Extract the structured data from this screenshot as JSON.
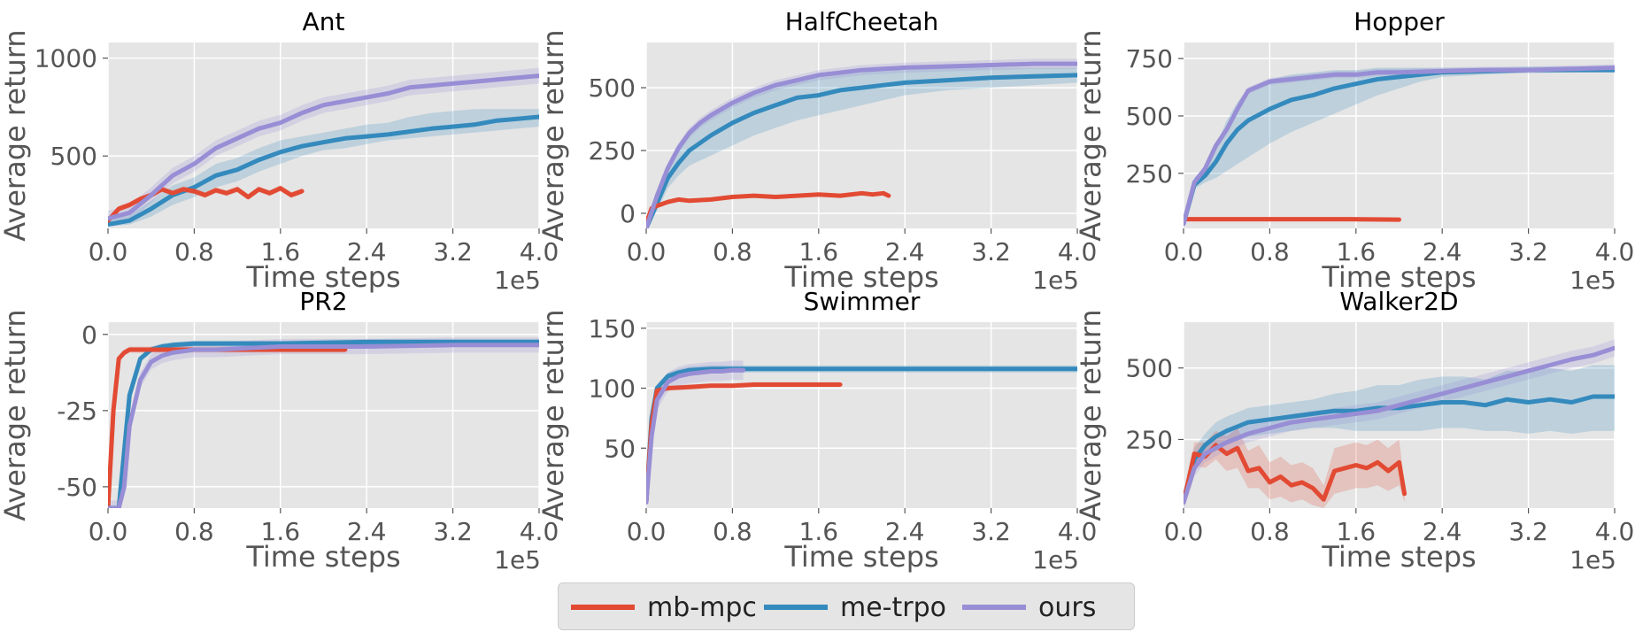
{
  "colors": {
    "mb-mpc": "#E24A33",
    "me-trpo": "#348ABD",
    "ours": "#988ED5",
    "panel_bg": "#E5E5E5",
    "grid": "#FFFFFF"
  },
  "legend": {
    "placement": "bottom-center",
    "items": [
      "mb-mpc",
      "me-trpo",
      "ours"
    ]
  },
  "chart_data": [
    {
      "type": "line",
      "title": "Ant",
      "xlabel": "Time steps",
      "ylabel": "Average return",
      "x_scale_label": "1e5",
      "xlim": [
        0,
        4.0
      ],
      "ylim": [
        130,
        1080
      ],
      "xticks": [
        "0.0",
        "0.8",
        "1.6",
        "2.4",
        "3.2",
        "4.0"
      ],
      "yticks": [
        500,
        1000
      ],
      "grid": true,
      "series": [
        {
          "name": "mb-mpc",
          "x": [
            0.0,
            0.1,
            0.2,
            0.3,
            0.4,
            0.5,
            0.6,
            0.7,
            0.8,
            0.9,
            1.0,
            1.1,
            1.2,
            1.3,
            1.4,
            1.5,
            1.6,
            1.7,
            1.8
          ],
          "y": [
            170,
            230,
            250,
            280,
            300,
            330,
            310,
            330,
            320,
            300,
            325,
            310,
            330,
            290,
            330,
            310,
            335,
            300,
            320
          ],
          "band": 15
        },
        {
          "name": "me-trpo",
          "x": [
            0.0,
            0.2,
            0.4,
            0.6,
            0.8,
            1.0,
            1.2,
            1.4,
            1.6,
            1.8,
            2.0,
            2.2,
            2.4,
            2.6,
            2.8,
            3.0,
            3.2,
            3.4,
            3.6,
            3.8,
            4.0
          ],
          "y": [
            150,
            170,
            230,
            300,
            340,
            400,
            430,
            480,
            520,
            550,
            570,
            590,
            600,
            610,
            625,
            640,
            650,
            660,
            680,
            690,
            700
          ],
          "lo": [
            140,
            150,
            190,
            250,
            290,
            340,
            370,
            420,
            460,
            500,
            530,
            540,
            560,
            580,
            590,
            600,
            610,
            620,
            630,
            640,
            650
          ],
          "hi": [
            170,
            200,
            270,
            350,
            390,
            460,
            490,
            540,
            580,
            600,
            620,
            640,
            660,
            670,
            700,
            720,
            730,
            740,
            740,
            740,
            740
          ]
        },
        {
          "name": "ours",
          "x": [
            0.0,
            0.2,
            0.4,
            0.6,
            0.8,
            1.0,
            1.2,
            1.4,
            1.6,
            1.8,
            2.0,
            2.2,
            2.4,
            2.6,
            2.8,
            3.0,
            3.2,
            3.4,
            3.6,
            3.8,
            4.0
          ],
          "y": [
            180,
            210,
            300,
            400,
            460,
            540,
            590,
            640,
            670,
            720,
            760,
            780,
            800,
            820,
            850,
            860,
            870,
            880,
            890,
            900,
            910
          ],
          "band": 40
        }
      ]
    },
    {
      "type": "line",
      "title": "HalfCheetah",
      "xlabel": "Time steps",
      "ylabel": "Average return",
      "x_scale_label": "1e5",
      "xlim": [
        0,
        4.0
      ],
      "ylim": [
        -60,
        680
      ],
      "xticks": [
        "0.0",
        "0.8",
        "1.6",
        "2.4",
        "3.2",
        "4.0"
      ],
      "yticks": [
        0,
        250,
        500
      ],
      "grid": true,
      "series": [
        {
          "name": "mb-mpc",
          "x": [
            0.0,
            0.05,
            0.1,
            0.2,
            0.3,
            0.4,
            0.6,
            0.8,
            1.0,
            1.2,
            1.4,
            1.6,
            1.8,
            2.0,
            2.1,
            2.2,
            2.25
          ],
          "y": [
            -40,
            20,
            30,
            45,
            55,
            50,
            55,
            65,
            70,
            65,
            70,
            75,
            70,
            80,
            75,
            80,
            70
          ],
          "band": 8
        },
        {
          "name": "me-trpo",
          "x": [
            0.0,
            0.1,
            0.2,
            0.3,
            0.4,
            0.5,
            0.6,
            0.8,
            1.0,
            1.2,
            1.4,
            1.6,
            1.8,
            2.0,
            2.2,
            2.4,
            2.8,
            3.2,
            3.6,
            4.0
          ],
          "y": [
            -60,
            40,
            140,
            200,
            250,
            280,
            310,
            360,
            400,
            430,
            460,
            470,
            490,
            500,
            510,
            520,
            530,
            540,
            545,
            550
          ],
          "lo": [
            -60,
            10,
            100,
            150,
            190,
            210,
            230,
            270,
            310,
            340,
            370,
            390,
            410,
            430,
            450,
            470,
            490,
            500,
            510,
            520
          ],
          "hi": [
            -40,
            80,
            190,
            260,
            320,
            360,
            390,
            440,
            480,
            510,
            530,
            540,
            550,
            560,
            570,
            570,
            580,
            580,
            580,
            580
          ]
        },
        {
          "name": "ours",
          "x": [
            0.0,
            0.1,
            0.2,
            0.3,
            0.4,
            0.5,
            0.6,
            0.8,
            1.0,
            1.2,
            1.4,
            1.6,
            1.8,
            2.0,
            2.2,
            2.4,
            2.8,
            3.2,
            3.6,
            4.0
          ],
          "y": [
            -60,
            70,
            180,
            260,
            320,
            360,
            390,
            440,
            480,
            510,
            530,
            550,
            560,
            570,
            575,
            580,
            585,
            590,
            595,
            595
          ],
          "band": 20
        }
      ]
    },
    {
      "type": "line",
      "title": "Hopper",
      "xlabel": "Time steps",
      "ylabel": "Average return",
      "x_scale_label": "1e5",
      "xlim": [
        0,
        4.0
      ],
      "ylim": [
        10,
        820
      ],
      "xticks": [
        "0.0",
        "0.8",
        "1.6",
        "2.4",
        "3.2",
        "4.0"
      ],
      "yticks": [
        250,
        500,
        750
      ],
      "grid": true,
      "series": [
        {
          "name": "mb-mpc",
          "x": [
            0.0,
            0.5,
            1.0,
            1.5,
            2.0
          ],
          "y": [
            50,
            50,
            50,
            50,
            48
          ],
          "band": 2
        },
        {
          "name": "me-trpo",
          "x": [
            0.0,
            0.1,
            0.2,
            0.3,
            0.4,
            0.5,
            0.6,
            0.8,
            1.0,
            1.2,
            1.4,
            1.6,
            1.8,
            2.0,
            2.2,
            2.4,
            2.8,
            3.2,
            3.6,
            4.0
          ],
          "y": [
            30,
            200,
            240,
            300,
            380,
            440,
            480,
            530,
            570,
            590,
            620,
            640,
            660,
            670,
            680,
            690,
            695,
            700,
            700,
            700
          ],
          "lo": [
            20,
            180,
            210,
            230,
            260,
            290,
            320,
            380,
            430,
            470,
            510,
            550,
            590,
            620,
            650,
            670,
            680,
            690,
            690,
            690
          ],
          "hi": [
            40,
            230,
            280,
            370,
            480,
            560,
            620,
            660,
            680,
            690,
            700,
            700,
            710,
            710,
            710,
            710,
            710,
            715,
            715,
            715
          ]
        },
        {
          "name": "ours",
          "x": [
            0.0,
            0.1,
            0.2,
            0.3,
            0.4,
            0.5,
            0.6,
            0.8,
            1.0,
            1.2,
            1.4,
            1.6,
            1.8,
            2.0,
            2.4,
            2.8,
            3.2,
            3.6,
            4.0
          ],
          "y": [
            30,
            210,
            270,
            370,
            440,
            530,
            610,
            650,
            660,
            670,
            680,
            680,
            690,
            690,
            695,
            700,
            700,
            705,
            710
          ],
          "band": 15
        }
      ]
    },
    {
      "type": "line",
      "title": "PR2",
      "xlabel": "Time steps",
      "ylabel": "Average return",
      "x_scale_label": "1e5",
      "xlim": [
        0,
        4.0
      ],
      "ylim": [
        -57,
        4
      ],
      "xticks": [
        "0.0",
        "0.8",
        "1.6",
        "2.4",
        "3.2",
        "4.0"
      ],
      "yticks": [
        -50,
        -25,
        0
      ],
      "grid": true,
      "series": [
        {
          "name": "mb-mpc",
          "x": [
            0.0,
            0.05,
            0.1,
            0.15,
            0.2,
            0.3,
            0.5,
            0.8,
            1.2,
            1.6,
            2.0,
            2.2
          ],
          "y": [
            -57,
            -25,
            -8,
            -6,
            -5,
            -5,
            -5,
            -5,
            -5,
            -5,
            -5,
            -5
          ],
          "band": 1
        },
        {
          "name": "me-trpo",
          "x": [
            0.0,
            0.1,
            0.2,
            0.3,
            0.4,
            0.5,
            0.6,
            0.8,
            1.0,
            1.6,
            2.4,
            3.2,
            4.0
          ],
          "y": [
            -57,
            -57,
            -20,
            -8,
            -5,
            -4,
            -3.5,
            -3,
            -3,
            -3,
            -2.5,
            -2.5,
            -2.5
          ],
          "band": 1
        },
        {
          "name": "ours",
          "x": [
            0.0,
            0.1,
            0.15,
            0.2,
            0.3,
            0.4,
            0.5,
            0.6,
            0.8,
            1.0,
            1.6,
            2.4,
            3.2,
            4.0
          ],
          "y": [
            -57,
            -57,
            -50,
            -30,
            -15,
            -9,
            -7,
            -6,
            -5,
            -5,
            -4,
            -4,
            -3.5,
            -3.5
          ],
          "band": 2.5
        }
      ]
    },
    {
      "type": "line",
      "title": "Swimmer",
      "xlabel": "Time steps",
      "ylabel": "Average return",
      "x_scale_label": "1e5",
      "xlim": [
        0,
        4.0
      ],
      "ylim": [
        0,
        155
      ],
      "xticks": [
        "0.0",
        "0.8",
        "1.6",
        "2.4",
        "3.2",
        "4.0"
      ],
      "yticks": [
        50,
        100,
        150
      ],
      "grid": true,
      "series": [
        {
          "name": "mb-mpc",
          "x": [
            0.0,
            0.05,
            0.1,
            0.2,
            0.4,
            0.6,
            0.8,
            1.0,
            1.2,
            1.4,
            1.6,
            1.8
          ],
          "y": [
            5,
            70,
            98,
            100,
            101,
            102,
            102,
            103,
            103,
            103,
            103,
            103
          ],
          "band": 2
        },
        {
          "name": "me-trpo",
          "x": [
            0.0,
            0.05,
            0.1,
            0.2,
            0.3,
            0.4,
            0.6,
            0.8,
            1.2,
            1.6,
            2.0,
            2.4,
            2.8,
            3.2,
            3.6,
            4.0
          ],
          "y": [
            5,
            75,
            100,
            110,
            113,
            115,
            116,
            116,
            116,
            116,
            116,
            116,
            116,
            116,
            116,
            116
          ],
          "band": 3
        },
        {
          "name": "ours",
          "x": [
            0.0,
            0.05,
            0.1,
            0.2,
            0.3,
            0.4,
            0.5,
            0.6,
            0.7,
            0.8,
            0.9
          ],
          "y": [
            5,
            60,
            90,
            105,
            110,
            112,
            113,
            114,
            114,
            115,
            115
          ],
          "band": 8
        }
      ]
    },
    {
      "type": "line",
      "title": "Walker2D",
      "xlabel": "Time steps",
      "ylabel": "Average return",
      "x_scale_label": "1e5",
      "xlim": [
        0,
        4.0
      ],
      "ylim": [
        10,
        660
      ],
      "xticks": [
        "0.0",
        "0.8",
        "1.6",
        "2.4",
        "3.2",
        "4.0"
      ],
      "yticks": [
        250,
        500
      ],
      "grid": true,
      "series": [
        {
          "name": "mb-mpc",
          "x": [
            0.0,
            0.1,
            0.2,
            0.3,
            0.4,
            0.5,
            0.6,
            0.7,
            0.8,
            0.9,
            1.0,
            1.1,
            1.2,
            1.3,
            1.4,
            1.5,
            1.6,
            1.7,
            1.8,
            1.9,
            2.0,
            2.05
          ],
          "y": [
            30,
            200,
            190,
            230,
            200,
            220,
            140,
            150,
            100,
            120,
            90,
            100,
            80,
            40,
            140,
            150,
            160,
            150,
            170,
            140,
            170,
            60
          ],
          "lo": [
            20,
            160,
            150,
            180,
            140,
            150,
            80,
            80,
            40,
            50,
            30,
            40,
            20,
            10,
            60,
            70,
            80,
            80,
            90,
            70,
            90,
            30
          ],
          "hi": [
            40,
            240,
            240,
            280,
            260,
            290,
            210,
            230,
            170,
            190,
            160,
            170,
            150,
            90,
            220,
            230,
            240,
            230,
            250,
            220,
            250,
            100
          ]
        },
        {
          "name": "me-trpo",
          "x": [
            0.0,
            0.1,
            0.2,
            0.3,
            0.4,
            0.6,
            0.8,
            1.0,
            1.2,
            1.4,
            1.6,
            1.8,
            2.0,
            2.2,
            2.4,
            2.6,
            2.8,
            3.0,
            3.2,
            3.4,
            3.6,
            3.8,
            4.0
          ],
          "y": [
            40,
            180,
            230,
            260,
            280,
            310,
            320,
            330,
            340,
            350,
            350,
            360,
            360,
            370,
            380,
            380,
            370,
            390,
            380,
            390,
            380,
            400,
            400
          ],
          "lo": [
            30,
            150,
            190,
            210,
            230,
            260,
            270,
            280,
            290,
            290,
            280,
            280,
            280,
            280,
            290,
            290,
            280,
            280,
            270,
            280,
            270,
            280,
            280
          ],
          "hi": [
            50,
            220,
            270,
            310,
            330,
            360,
            370,
            380,
            390,
            410,
            420,
            440,
            440,
            460,
            470,
            470,
            460,
            490,
            490,
            500,
            490,
            510,
            510
          ]
        },
        {
          "name": "ours",
          "x": [
            0.0,
            0.1,
            0.2,
            0.3,
            0.4,
            0.6,
            0.8,
            1.0,
            1.2,
            1.4,
            1.6,
            1.8,
            2.0,
            2.2,
            2.4,
            2.6,
            2.8,
            3.0,
            3.2,
            3.4,
            3.6,
            3.8,
            4.0
          ],
          "y": [
            30,
            150,
            200,
            220,
            240,
            270,
            290,
            310,
            320,
            330,
            340,
            350,
            370,
            390,
            410,
            430,
            450,
            470,
            490,
            510,
            530,
            545,
            570
          ],
          "band": 30
        }
      ]
    }
  ]
}
